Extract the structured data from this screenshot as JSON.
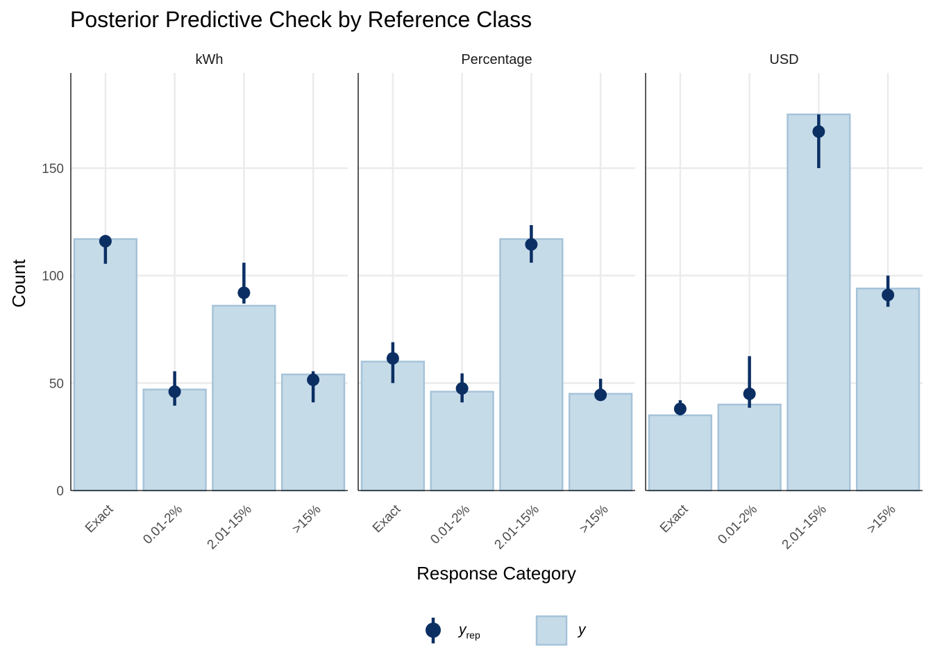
{
  "chart_data": {
    "type": "bar",
    "title": "Posterior Predictive Check by Reference Class",
    "xlabel": "Response Category",
    "ylabel": "Count",
    "ylim": [
      0,
      190
    ],
    "yticks": [
      0,
      50,
      100,
      150
    ],
    "grid": true,
    "legend_position": "bottom",
    "categories": [
      "Exact",
      "0.01-2%",
      "2.01-15%",
      ">15%"
    ],
    "colors": {
      "bar_fill": "#c6dbe8",
      "bar_stroke": "#a5c3d9",
      "point": "#0b2f63",
      "grid": "#ebebeb",
      "axis": "#000000"
    },
    "legend": [
      {
        "key": "yrep",
        "label": "y",
        "subscript": "rep",
        "marker": "point-range"
      },
      {
        "key": "y",
        "label": "y",
        "subscript": "",
        "marker": "bar"
      }
    ],
    "facets": [
      {
        "label": "kWh",
        "y": [
          117,
          47,
          86,
          54
        ],
        "yrep": [
          {
            "median": 116,
            "low": 105.5,
            "high": 116
          },
          {
            "median": 46,
            "low": 39.5,
            "high": 55.5
          },
          {
            "median": 92,
            "low": 87,
            "high": 106
          },
          {
            "median": 51.5,
            "low": 41,
            "high": 55.5
          }
        ]
      },
      {
        "label": "Percentage",
        "y": [
          60,
          46,
          117,
          45
        ],
        "yrep": [
          {
            "median": 61.5,
            "low": 50,
            "high": 69
          },
          {
            "median": 47.5,
            "low": 41,
            "high": 54.5
          },
          {
            "median": 114.5,
            "low": 106,
            "high": 123.5
          },
          {
            "median": 44.5,
            "low": 44.5,
            "high": 52
          }
        ]
      },
      {
        "label": "USD",
        "y": [
          35,
          40,
          175,
          94
        ],
        "yrep": [
          {
            "median": 38,
            "low": 35,
            "high": 42
          },
          {
            "median": 45,
            "low": 38.5,
            "high": 62.5
          },
          {
            "median": 167,
            "low": 150,
            "high": 175
          },
          {
            "median": 91,
            "low": 85.5,
            "high": 100
          }
        ]
      }
    ]
  }
}
